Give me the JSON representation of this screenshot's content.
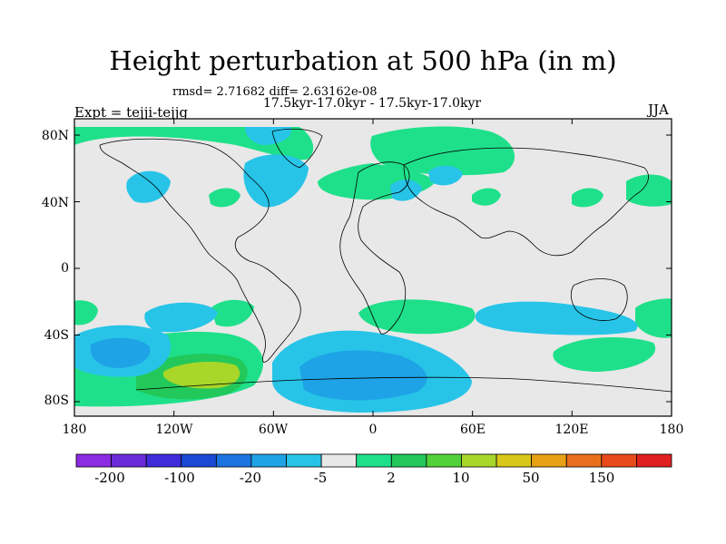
{
  "title": "Height perturbation at 500 hPa (in m)",
  "stats": "rmsd= 2.71682 diff= 2.63162e-08",
  "subtitle": "17.5kyr-17.0kyr - 17.5kyr-17.0kyr",
  "experiment": "Expt = tejji-tejjg",
  "season": "JJA",
  "lat_labels": [
    "80N",
    "40N",
    "0",
    "40S",
    "80S"
  ],
  "lon_labels": [
    "180",
    "120W",
    "60W",
    "0",
    "60E",
    "120E",
    "180"
  ],
  "colorbar": {
    "colors": [
      "#8b2be2",
      "#6a2bd9",
      "#3f2bd9",
      "#1a49d6",
      "#1c74e0",
      "#1ea3e6",
      "#27c4e8",
      "#e8e8e8",
      "#1fe08a",
      "#22c95a",
      "#52d13a",
      "#a8d629",
      "#d8c718",
      "#e8a115",
      "#e8701c",
      "#e84a1c",
      "#e02020"
    ],
    "tick_labels": [
      "-200",
      "-100",
      "-20",
      "-5",
      "2",
      "10",
      "50",
      "150"
    ]
  },
  "map_colors": {
    "background": "#e8e8e8",
    "pos_light": "#1fe08a",
    "pos_mid": "#22c95a",
    "pos_high": "#a8d629",
    "neg_light": "#27c4e8",
    "neg_mid": "#1ea3e6",
    "neg_high": "#1c74e0",
    "coast": "#000000"
  }
}
